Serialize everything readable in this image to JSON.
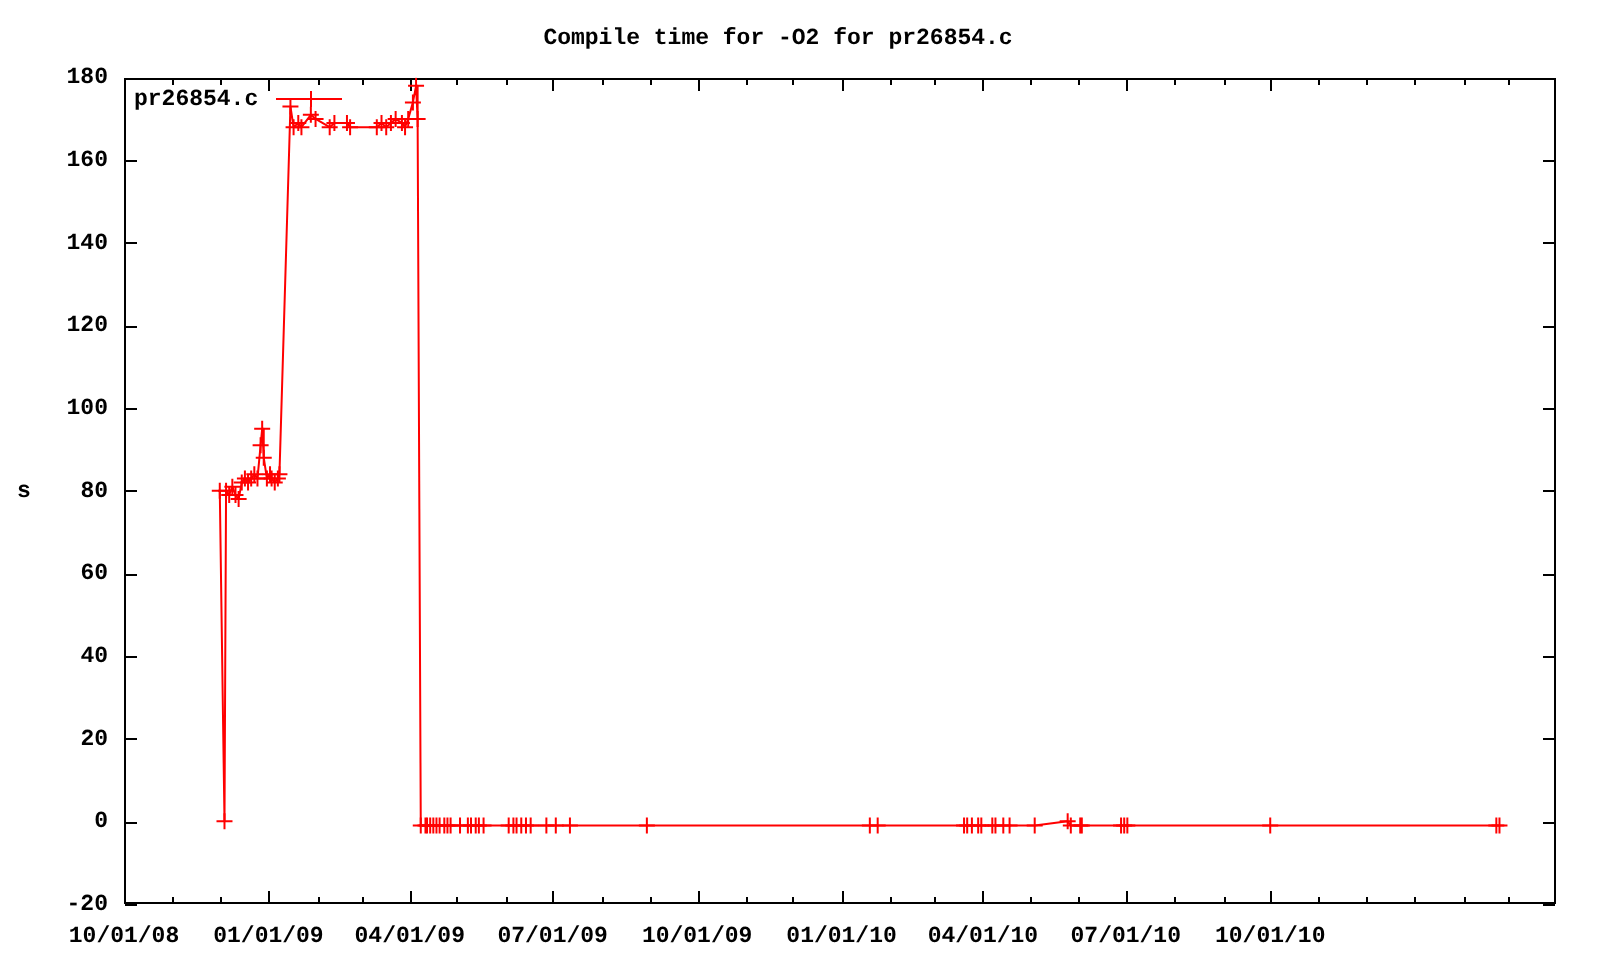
{
  "chart_data": {
    "type": "line",
    "title": "Compile time for -O2 for pr26854.c",
    "ylabel": "s",
    "x": [
      "2008-12-01",
      "2008-12-04",
      "2008-12-05",
      "2008-12-07",
      "2008-12-09",
      "2008-12-11",
      "2008-12-13",
      "2008-12-15",
      "2008-12-17",
      "2008-12-19",
      "2008-12-21",
      "2008-12-23",
      "2008-12-25",
      "2008-12-27",
      "2008-12-28",
      "2008-12-29",
      "2008-12-31",
      "2009-01-02",
      "2009-01-03",
      "2009-01-05",
      "2009-01-07",
      "2009-01-08",
      "2009-01-15",
      "2009-01-17",
      "2009-01-20",
      "2009-01-22",
      "2009-01-28",
      "2009-01-31",
      "2009-02-09",
      "2009-02-12",
      "2009-02-20",
      "2009-02-22",
      "2009-03-11",
      "2009-03-14",
      "2009-03-17",
      "2009-03-20",
      "2009-03-23",
      "2009-03-27",
      "2009-03-29",
      "2009-03-31",
      "2009-04-03",
      "2009-04-05",
      "2009-04-06",
      "2009-04-08",
      "2009-04-11",
      "2009-04-12",
      "2009-04-14",
      "2009-04-16",
      "2009-04-18",
      "2009-04-20",
      "2009-04-23",
      "2009-04-25",
      "2009-04-27",
      "2009-05-03",
      "2009-05-08",
      "2009-05-10",
      "2009-05-13",
      "2009-05-15",
      "2009-05-18",
      "2009-06-03",
      "2009-06-06",
      "2009-06-08",
      "2009-06-11",
      "2009-06-14",
      "2009-06-17",
      "2009-06-27",
      "2009-07-03",
      "2009-07-12",
      "2009-08-30",
      "2010-01-19",
      "2010-01-24",
      "2010-03-20",
      "2010-03-22",
      "2010-03-25",
      "2010-03-29",
      "2010-03-31",
      "2010-04-07",
      "2010-04-09",
      "2010-04-14",
      "2010-04-18",
      "2010-05-04",
      "2010-05-25",
      "2010-05-27",
      "2010-06-02",
      "2010-06-03",
      "2010-06-28",
      "2010-06-30",
      "2010-07-02",
      "2010-10-01",
      "2011-02-22",
      "2011-02-24"
    ],
    "series": [
      {
        "name": "pr26854.c",
        "color": "#ff0000",
        "values": [
          80,
          0,
          80,
          79,
          81,
          79,
          78,
          82,
          83,
          82,
          83,
          84,
          83,
          91,
          95,
          88,
          83,
          84,
          83,
          82,
          83,
          84,
          173,
          168,
          169,
          168,
          171,
          170,
          168,
          169,
          169,
          168,
          168,
          169,
          168,
          169,
          170,
          169,
          168,
          170,
          174,
          178,
          170,
          -1,
          -1,
          -1,
          -1,
          -1,
          -1,
          -1,
          -1,
          -1,
          -1,
          -1,
          -1,
          -1,
          -1,
          -1,
          -1,
          -1,
          -1,
          -1,
          -1,
          -1,
          -1,
          -1,
          -1,
          -1,
          -1,
          -1,
          -1,
          -1,
          -1,
          -1,
          -1,
          -1,
          -1,
          -1,
          -1,
          -1,
          -1,
          0,
          -1,
          -1,
          -1,
          -1,
          -1,
          -1,
          -1,
          -1,
          -1
        ]
      }
    ],
    "xlim": [
      "2008-10-01",
      "2011-04-01"
    ],
    "xticks": [
      {
        "value": "2008-10-01",
        "label": "10/01/08"
      },
      {
        "value": "2008-11-01",
        "label": null
      },
      {
        "value": "2008-12-01",
        "label": null
      },
      {
        "value": "2009-01-01",
        "label": "01/01/09"
      },
      {
        "value": "2009-02-01",
        "label": null
      },
      {
        "value": "2009-03-01",
        "label": null
      },
      {
        "value": "2009-04-01",
        "label": "04/01/09"
      },
      {
        "value": "2009-05-01",
        "label": null
      },
      {
        "value": "2009-06-01",
        "label": null
      },
      {
        "value": "2009-07-01",
        "label": "07/01/09"
      },
      {
        "value": "2009-08-01",
        "label": null
      },
      {
        "value": "2009-09-01",
        "label": null
      },
      {
        "value": "2009-10-01",
        "label": "10/01/09"
      },
      {
        "value": "2009-11-01",
        "label": null
      },
      {
        "value": "2009-12-01",
        "label": null
      },
      {
        "value": "2010-01-01",
        "label": "01/01/10"
      },
      {
        "value": "2010-02-01",
        "label": null
      },
      {
        "value": "2010-03-01",
        "label": null
      },
      {
        "value": "2010-04-01",
        "label": "04/01/10"
      },
      {
        "value": "2010-05-01",
        "label": null
      },
      {
        "value": "2010-06-01",
        "label": null
      },
      {
        "value": "2010-07-01",
        "label": "07/01/10"
      },
      {
        "value": "2010-08-01",
        "label": null
      },
      {
        "value": "2010-09-01",
        "label": null
      },
      {
        "value": "2010-10-01",
        "label": "10/01/10"
      },
      {
        "value": "2010-11-01",
        "label": null
      },
      {
        "value": "2010-12-01",
        "label": null
      },
      {
        "value": "2011-01-01",
        "label": null
      },
      {
        "value": "2011-02-01",
        "label": null
      },
      {
        "value": "2011-03-01",
        "label": null
      }
    ],
    "ylim": [
      -20,
      180
    ],
    "yticks": [
      -20,
      0,
      20,
      40,
      60,
      80,
      100,
      120,
      140,
      160,
      180
    ],
    "grid": false,
    "legend": "top left",
    "marker": "cross",
    "line_style": "solid"
  }
}
